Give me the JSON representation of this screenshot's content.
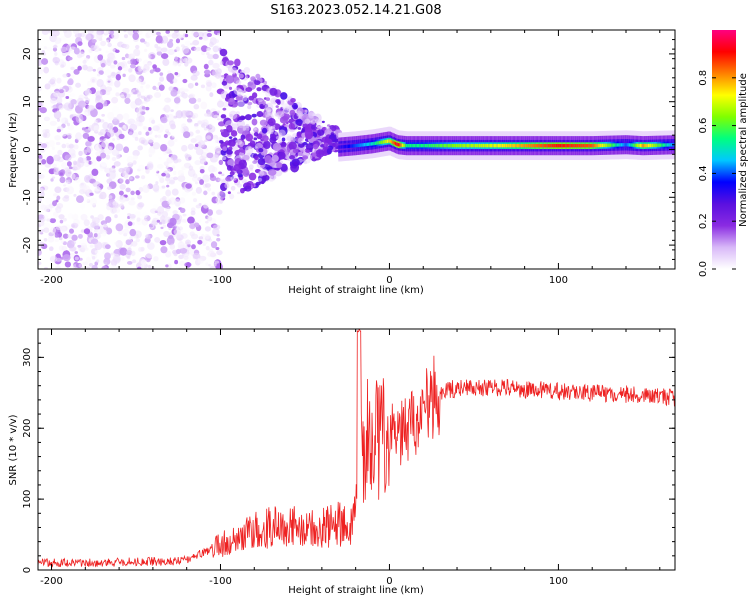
{
  "figure": {
    "title": "S163.2023.052.14.21.G08"
  },
  "colorbar": {
    "label": "Normalized spectral amplitude",
    "ticks": [
      "0.0",
      "0.2",
      "0.4",
      "0.6",
      "0.8"
    ],
    "tick_values": [
      0.0,
      0.2,
      0.4,
      0.6,
      0.8
    ],
    "range": [
      0.0,
      1.0
    ],
    "colormap": [
      "#ffffff",
      "#d8b8f8",
      "#8a2be2",
      "#5a10e0",
      "#0000ff",
      "#00c8ff",
      "#00ff80",
      "#80ff00",
      "#ffff00",
      "#ff8000",
      "#ff0000",
      "#ff0080"
    ]
  },
  "chart_data": [
    {
      "type": "heatmap",
      "name": "spectrogram",
      "xlabel": "Height of straight line (km)",
      "ylabel": "Frequency (Hz)",
      "xlim": [
        -208,
        169
      ],
      "ylim": [
        -25,
        25
      ],
      "xticks": [
        -200,
        -100,
        0,
        100
      ],
      "xtick_labels": [
        "-200",
        "-100",
        "0",
        "100"
      ],
      "yticks": [
        -20,
        -10,
        0,
        10,
        20
      ],
      "ytick_labels": [
        "-20",
        "-10",
        "0",
        "10",
        "20"
      ],
      "description_of_content": [
        {
          "region_x": [
            -208,
            -100
          ],
          "frequency_range": [
            -25,
            25
          ],
          "amplitude": [
            0.0,
            0.15
          ],
          "pattern": "scattered noise"
        },
        {
          "region_x": [
            -100,
            -30
          ],
          "frequency_range": [
            -15,
            17
          ],
          "amplitude": [
            0.1,
            0.3
          ],
          "pattern": "converging blobs"
        },
        {
          "region_x": [
            -30,
            169
          ],
          "frequency_range": [
            0,
            2
          ],
          "amplitude": [
            0.3,
            1.0
          ],
          "pattern": "stable tone band"
        }
      ],
      "band_profile": {
        "x": [
          -30,
          -20,
          -10,
          0,
          5,
          10,
          20,
          40,
          60,
          80,
          100,
          120,
          140,
          150,
          169
        ],
        "frequency": [
          0.5,
          0.8,
          1.2,
          1.8,
          1.0,
          0.8,
          0.8,
          0.8,
          0.8,
          0.8,
          0.8,
          0.8,
          1.0,
          0.8,
          1.0
        ],
        "amplitude": [
          0.3,
          0.4,
          0.5,
          0.75,
          0.95,
          0.55,
          0.55,
          0.65,
          0.7,
          0.8,
          0.9,
          0.85,
          0.4,
          0.8,
          0.4
        ]
      }
    },
    {
      "type": "line",
      "name": "snr",
      "xlabel": "Height of straight line (km)",
      "ylabel": "SNR (10 * v/v)",
      "xlim": [
        -208,
        169
      ],
      "ylim": [
        0,
        340
      ],
      "xticks": [
        -200,
        -100,
        0,
        100
      ],
      "xtick_labels": [
        "-200",
        "-100",
        "0",
        "100"
      ],
      "yticks": [
        0,
        100,
        200,
        300
      ],
      "ytick_labels": [
        "0",
        "100",
        "200",
        "300"
      ],
      "color": "#ee2222",
      "x": [
        -208,
        -190,
        -170,
        -150,
        -130,
        -120,
        -110,
        -100,
        -90,
        -80,
        -70,
        -60,
        -50,
        -40,
        -30,
        -25,
        -20,
        -18,
        -15,
        -10,
        -5,
        0,
        5,
        10,
        15,
        20,
        25,
        30,
        40,
        50,
        60,
        80,
        100,
        120,
        140,
        160,
        169
      ],
      "y": [
        10,
        10,
        10,
        12,
        12,
        15,
        25,
        35,
        45,
        55,
        60,
        60,
        60,
        62,
        65,
        65,
        70,
        170,
        180,
        185,
        185,
        190,
        190,
        200,
        210,
        225,
        240,
        250,
        257,
        258,
        258,
        255,
        252,
        250,
        248,
        245,
        243
      ]
    }
  ]
}
